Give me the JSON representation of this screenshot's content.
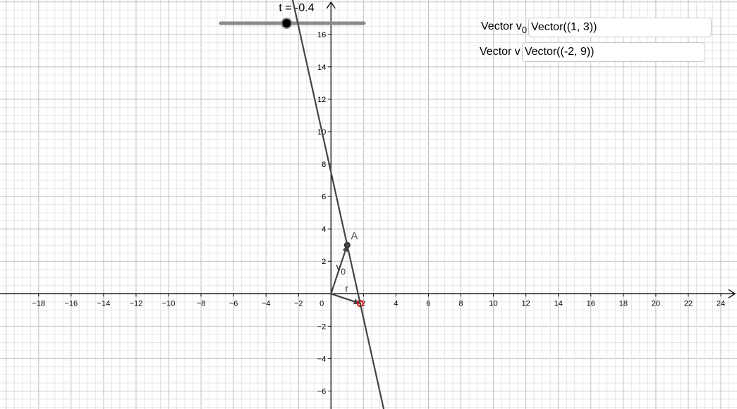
{
  "graph": {
    "x_ticks": [
      -18,
      -16,
      -14,
      -12,
      -10,
      -8,
      -6,
      -4,
      -2,
      0,
      2,
      4,
      6,
      8,
      10,
      12,
      14,
      16,
      18,
      20,
      22,
      24
    ],
    "y_ticks": [
      -6,
      -4,
      -2,
      2,
      4,
      6,
      8,
      10,
      12,
      14,
      16
    ],
    "origin_label": "0",
    "point_A": {
      "label": "A",
      "x": 1,
      "y": 3
    },
    "vector_v0_label": "v",
    "vector_v0_sub": "0",
    "vector_r_label": "r",
    "direction": {
      "x": -2,
      "y": 9
    },
    "colors": {
      "line": "#444444",
      "point_r": "#ff0000",
      "axis": "#000000",
      "grid_major": "#c0c0c0",
      "grid_minor": "#e6e6e6"
    }
  },
  "slider": {
    "label": "t = -0.4",
    "value": -0.4,
    "min": -5,
    "max": 5
  },
  "inputs": [
    {
      "label": "Vector v",
      "label_sub": "0",
      "value": "Vector((1, 3))"
    },
    {
      "label": "Vector v",
      "label_sub": "",
      "value": "Vector((-2, 9))"
    }
  ]
}
